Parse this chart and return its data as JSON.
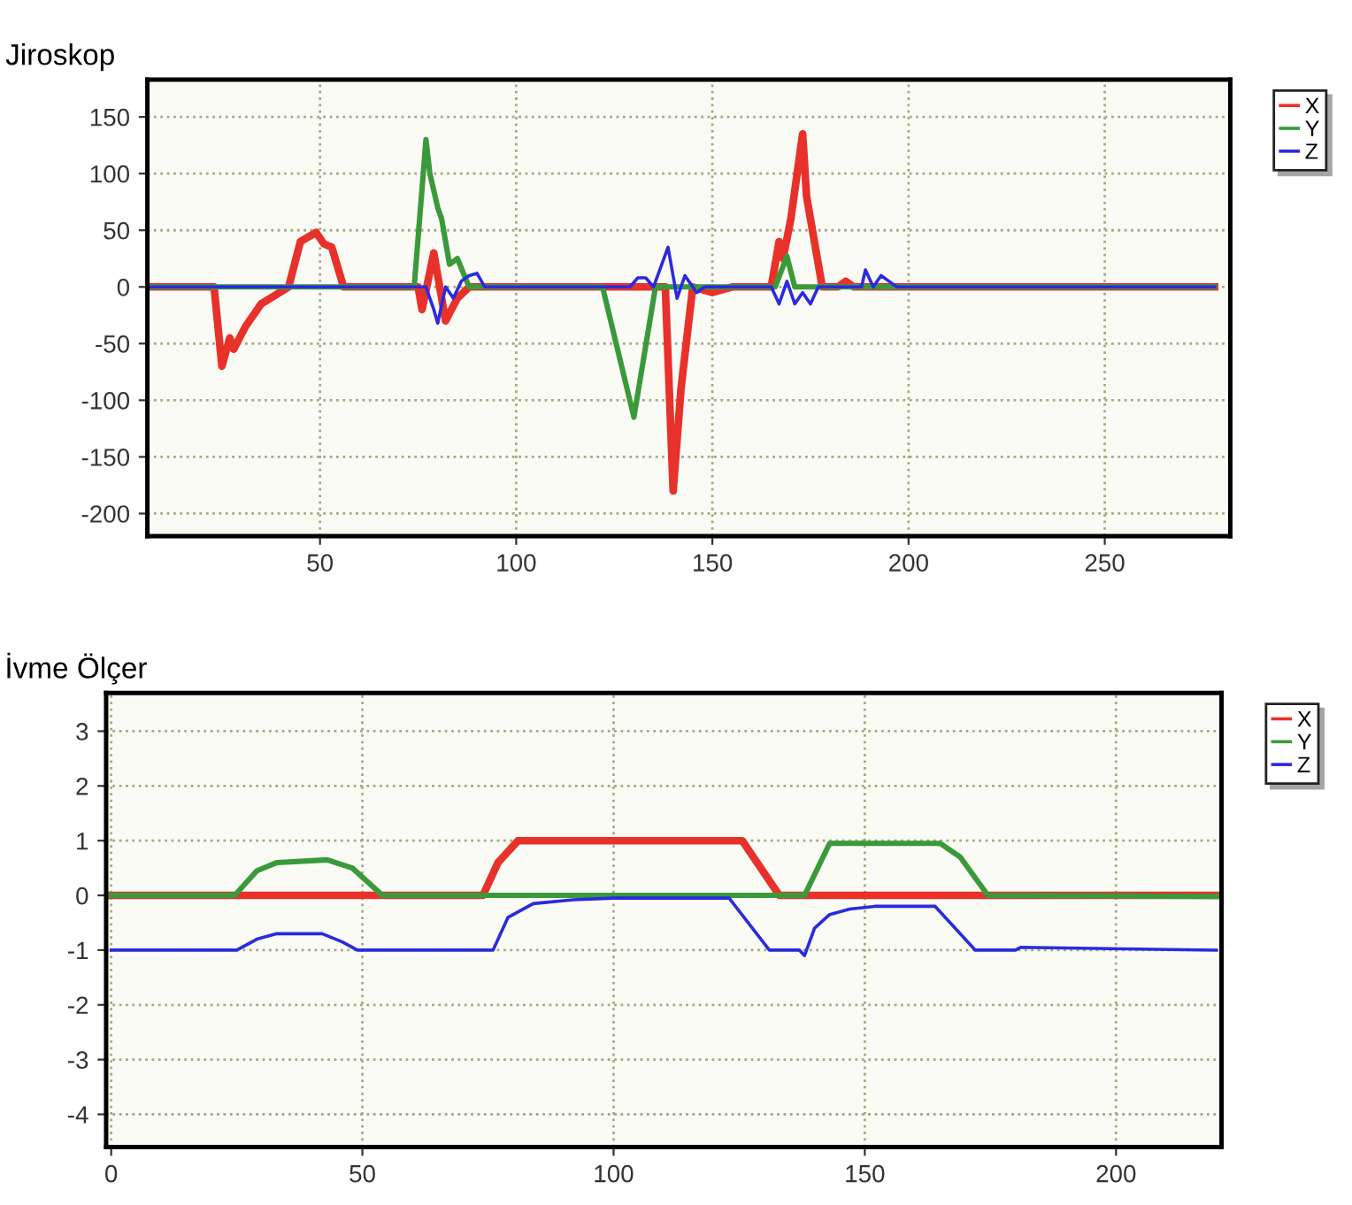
{
  "chart_data": [
    {
      "type": "line",
      "title": "Jiroskop",
      "xlim": [
        6,
        282
      ],
      "xticks": [
        50,
        100,
        150,
        200,
        250
      ],
      "ylim": [
        -220,
        183
      ],
      "yticks": [
        -200,
        -150,
        -100,
        -50,
        0,
        50,
        100,
        150
      ],
      "grid": true,
      "legend": "top right",
      "line_style": "solid",
      "marker": "none",
      "series": [
        {
          "name": "X",
          "color": "#e8312a",
          "x": [
            7,
            23,
            25,
            27,
            28,
            31,
            35,
            42,
            45,
            49,
            51,
            53,
            56,
            75,
            76,
            79,
            82,
            85,
            88,
            138,
            140,
            142,
            145,
            150,
            155,
            165,
            167,
            168,
            170,
            173,
            174,
            175,
            178,
            182,
            184,
            186,
            190,
            278
          ],
          "values": [
            0,
            0,
            -70,
            -45,
            -55,
            -35,
            -15,
            0,
            40,
            48,
            38,
            35,
            0,
            0,
            -20,
            30,
            -30,
            -10,
            0,
            0,
            -180,
            -90,
            0,
            -5,
            0,
            0,
            40,
            25,
            60,
            135,
            80,
            60,
            0,
            0,
            5,
            0,
            0,
            0
          ]
        },
        {
          "name": "Y",
          "color": "#3a9a3a",
          "x": [
            7,
            74,
            77,
            78,
            80,
            81,
            83,
            85,
            88,
            122,
            130,
            135.5,
            145,
            166,
            169,
            171,
            278
          ],
          "values": [
            0,
            0,
            130,
            100,
            70,
            60,
            20,
            25,
            0,
            0,
            -115,
            0,
            0,
            0,
            27,
            0,
            0
          ]
        },
        {
          "name": "Z",
          "color": "#2a2ae0",
          "x": [
            7,
            77,
            79,
            80,
            82,
            84,
            86,
            88,
            90,
            92,
            129,
            131,
            133,
            135,
            138.7,
            141,
            143,
            146,
            148,
            165,
            167,
            169,
            171,
            173,
            175,
            177,
            188,
            189,
            191,
            193,
            195,
            197,
            278
          ],
          "values": [
            0,
            0,
            -20,
            -32,
            0,
            -10,
            5,
            10,
            12,
            0,
            0,
            8,
            8,
            0,
            35,
            -10,
            10,
            -5,
            0,
            0,
            -15,
            5,
            -15,
            -5,
            -15,
            0,
            0,
            15,
            0,
            10,
            5,
            0,
            0
          ]
        }
      ]
    },
    {
      "type": "line",
      "title": "İvme Ölçer",
      "xlim": [
        -1,
        221
      ],
      "xticks": [
        0,
        50,
        100,
        150,
        200
      ],
      "ylim": [
        -4.6,
        3.7
      ],
      "yticks": [
        -4,
        -3,
        -2,
        -1,
        0,
        1,
        2,
        3
      ],
      "grid": true,
      "legend": "top right",
      "line_style": "solid",
      "marker": "none",
      "series": [
        {
          "name": "X",
          "color": "#e8312a",
          "x": [
            0,
            74,
            77,
            81,
            125.6,
            133,
            220
          ],
          "values": [
            0,
            0,
            0.6,
            1,
            1,
            0,
            0
          ]
        },
        {
          "name": "Y",
          "color": "#3a9a3a",
          "x": [
            0,
            24.6,
            29,
            33,
            43,
            48,
            54,
            138,
            143,
            165,
            169,
            174.5,
            220
          ],
          "values": [
            0,
            0,
            0.45,
            0.6,
            0.65,
            0.5,
            0,
            0,
            0.95,
            0.95,
            0.7,
            0,
            -0.02
          ]
        },
        {
          "name": "Z",
          "color": "#2a2ae0",
          "x": [
            0,
            25,
            29,
            33,
            42,
            46,
            49,
            76,
            79,
            84,
            92,
            100,
            123,
            131,
            137,
            138,
            140,
            143,
            147,
            152,
            164,
            172,
            180,
            181,
            220
          ],
          "values": [
            -1,
            -1,
            -0.8,
            -0.7,
            -0.7,
            -0.85,
            -1,
            -1,
            -0.4,
            -0.15,
            -0.08,
            -0.05,
            -0.05,
            -1,
            -1,
            -1.1,
            -0.6,
            -0.35,
            -0.25,
            -0.2,
            -0.2,
            -1,
            -1,
            -0.95,
            -1
          ]
        }
      ]
    }
  ]
}
